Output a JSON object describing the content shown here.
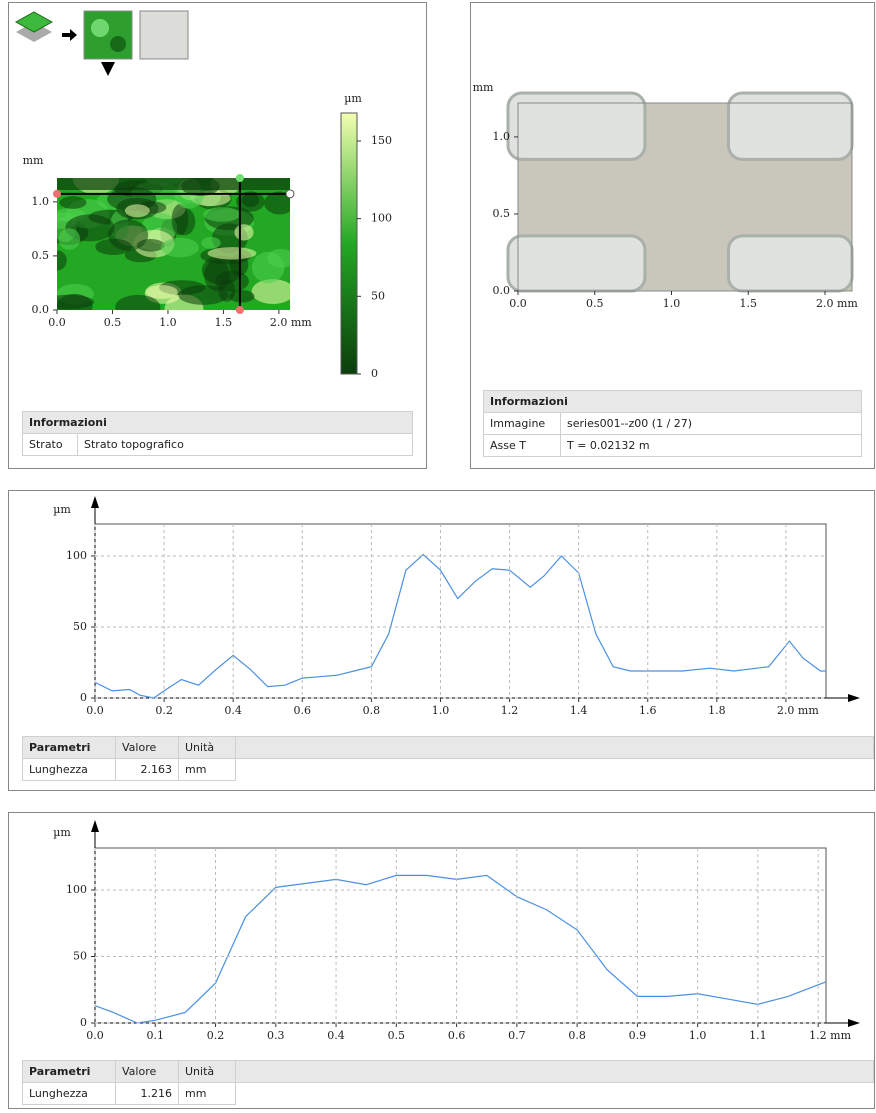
{
  "chart_data": [
    {
      "type": "heatmap",
      "ylabel": "mm",
      "xlim": [
        0,
        2.1
      ],
      "ylim": [
        0,
        1.22
      ],
      "xticks": [
        {
          "value": 0,
          "label": "0.0"
        },
        0.5,
        {
          "value": 1,
          "label": "1.0"
        },
        1.5,
        {
          "value": 2,
          "label": "2.0 mm"
        }
      ],
      "yticks": [
        {
          "value": 0,
          "label": "0.0"
        },
        0.5,
        {
          "value": 1,
          "label": "1.0"
        }
      ],
      "colorbar": {
        "label": "µm",
        "lim": [
          0,
          168
        ],
        "ticks": [
          0,
          50,
          100,
          150
        ],
        "colors": [
          "#0b3d0b",
          "#23a823",
          "#f2ffb0"
        ]
      }
    },
    {
      "type": "image",
      "ylabel": "mm",
      "xlim": [
        0,
        2.176
      ],
      "ylim": [
        0,
        1.22
      ],
      "xticks": [
        {
          "value": 0,
          "label": "0.0"
        },
        0.5,
        {
          "value": 1,
          "label": "1.0"
        },
        1.5,
        {
          "value": 2,
          "label": "2.0 mm"
        }
      ],
      "yticks": [
        {
          "value": 0,
          "label": "0.0"
        },
        0.5,
        {
          "value": 1,
          "label": "1.0"
        }
      ]
    },
    {
      "type": "line",
      "ylabel": "µm",
      "grid": true,
      "xlim": [
        0,
        2.116
      ],
      "ylim": [
        0,
        122.5
      ],
      "xticks": [
        {
          "value": 0,
          "label": "0.0"
        },
        0.2,
        0.4,
        0.6,
        0.8,
        {
          "value": 1,
          "label": "1.0"
        },
        1.2,
        1.4,
        1.6,
        1.8,
        {
          "value": 2,
          "label": "2.0 mm"
        }
      ],
      "yticks": [
        0,
        50,
        100
      ],
      "x": [
        0,
        0.05,
        0.1,
        0.13,
        0.17,
        0.2,
        0.25,
        0.3,
        0.35,
        0.4,
        0.45,
        0.5,
        0.55,
        0.6,
        0.65,
        0.7,
        0.75,
        0.8,
        0.85,
        0.9,
        0.95,
        1.0,
        1.05,
        1.1,
        1.15,
        1.2,
        1.26,
        1.3,
        1.35,
        1.4,
        1.45,
        1.5,
        1.55,
        1.6,
        1.7,
        1.78,
        1.85,
        1.95,
        2.01,
        2.05,
        2.1,
        2.116
      ],
      "series": [
        {
          "color": "#4a90e2",
          "values": [
            11,
            5,
            6,
            2,
            0,
            5,
            13,
            9,
            20,
            30,
            20,
            8,
            9,
            14,
            15,
            16,
            19,
            22,
            45,
            90,
            101,
            90,
            70,
            82,
            91,
            90,
            78,
            86,
            100,
            88,
            45,
            22,
            19,
            19,
            19,
            21,
            19,
            22,
            40,
            28,
            19,
            19
          ]
        }
      ]
    },
    {
      "type": "line",
      "ylabel": "µm",
      "grid": true,
      "xlim": [
        0,
        1.213
      ],
      "ylim": [
        0,
        131.6
      ],
      "xticks": [
        {
          "value": 0,
          "label": "0.0"
        },
        0.1,
        0.2,
        0.3,
        0.4,
        0.5,
        0.6,
        0.7,
        0.8,
        0.9,
        {
          "value": 1,
          "label": "1.0"
        },
        1.1,
        {
          "value": 1.2,
          "label": "1.2 mm"
        }
      ],
      "yticks": [
        0,
        50,
        100
      ],
      "x": [
        0,
        0.03,
        0.07,
        0.1,
        0.15,
        0.2,
        0.25,
        0.3,
        0.35,
        0.4,
        0.45,
        0.5,
        0.55,
        0.6,
        0.65,
        0.7,
        0.75,
        0.8,
        0.85,
        0.9,
        0.95,
        1.0,
        1.05,
        1.1,
        1.15,
        1.213
      ],
      "series": [
        {
          "color": "#4a90e2",
          "values": [
            13,
            8,
            0,
            2,
            8,
            30,
            80,
            102,
            105,
            108,
            104,
            111,
            111,
            108,
            111,
            95,
            85,
            70,
            40,
            20,
            20,
            22,
            18,
            14,
            20,
            31
          ]
        }
      ]
    }
  ],
  "info_tables": [
    {
      "title": "Informazioni",
      "rows": [
        [
          "Strato",
          "Strato topografico"
        ]
      ]
    },
    {
      "title": "Informazioni",
      "rows": [
        [
          "Immagine",
          "series001--z00 (1 / 27)"
        ],
        [
          "Asse T",
          "T = 0.02132 m"
        ]
      ]
    }
  ],
  "parameter_tables": [
    {
      "columns": [
        "Parametri",
        "Valore",
        "Unità"
      ],
      "rows": [
        [
          "Lunghezza",
          "2.163",
          "mm"
        ]
      ]
    },
    {
      "columns": [
        "Parametri",
        "Valore",
        "Unità"
      ],
      "rows": [
        [
          "Lunghezza",
          "1.216",
          "mm"
        ]
      ]
    }
  ]
}
